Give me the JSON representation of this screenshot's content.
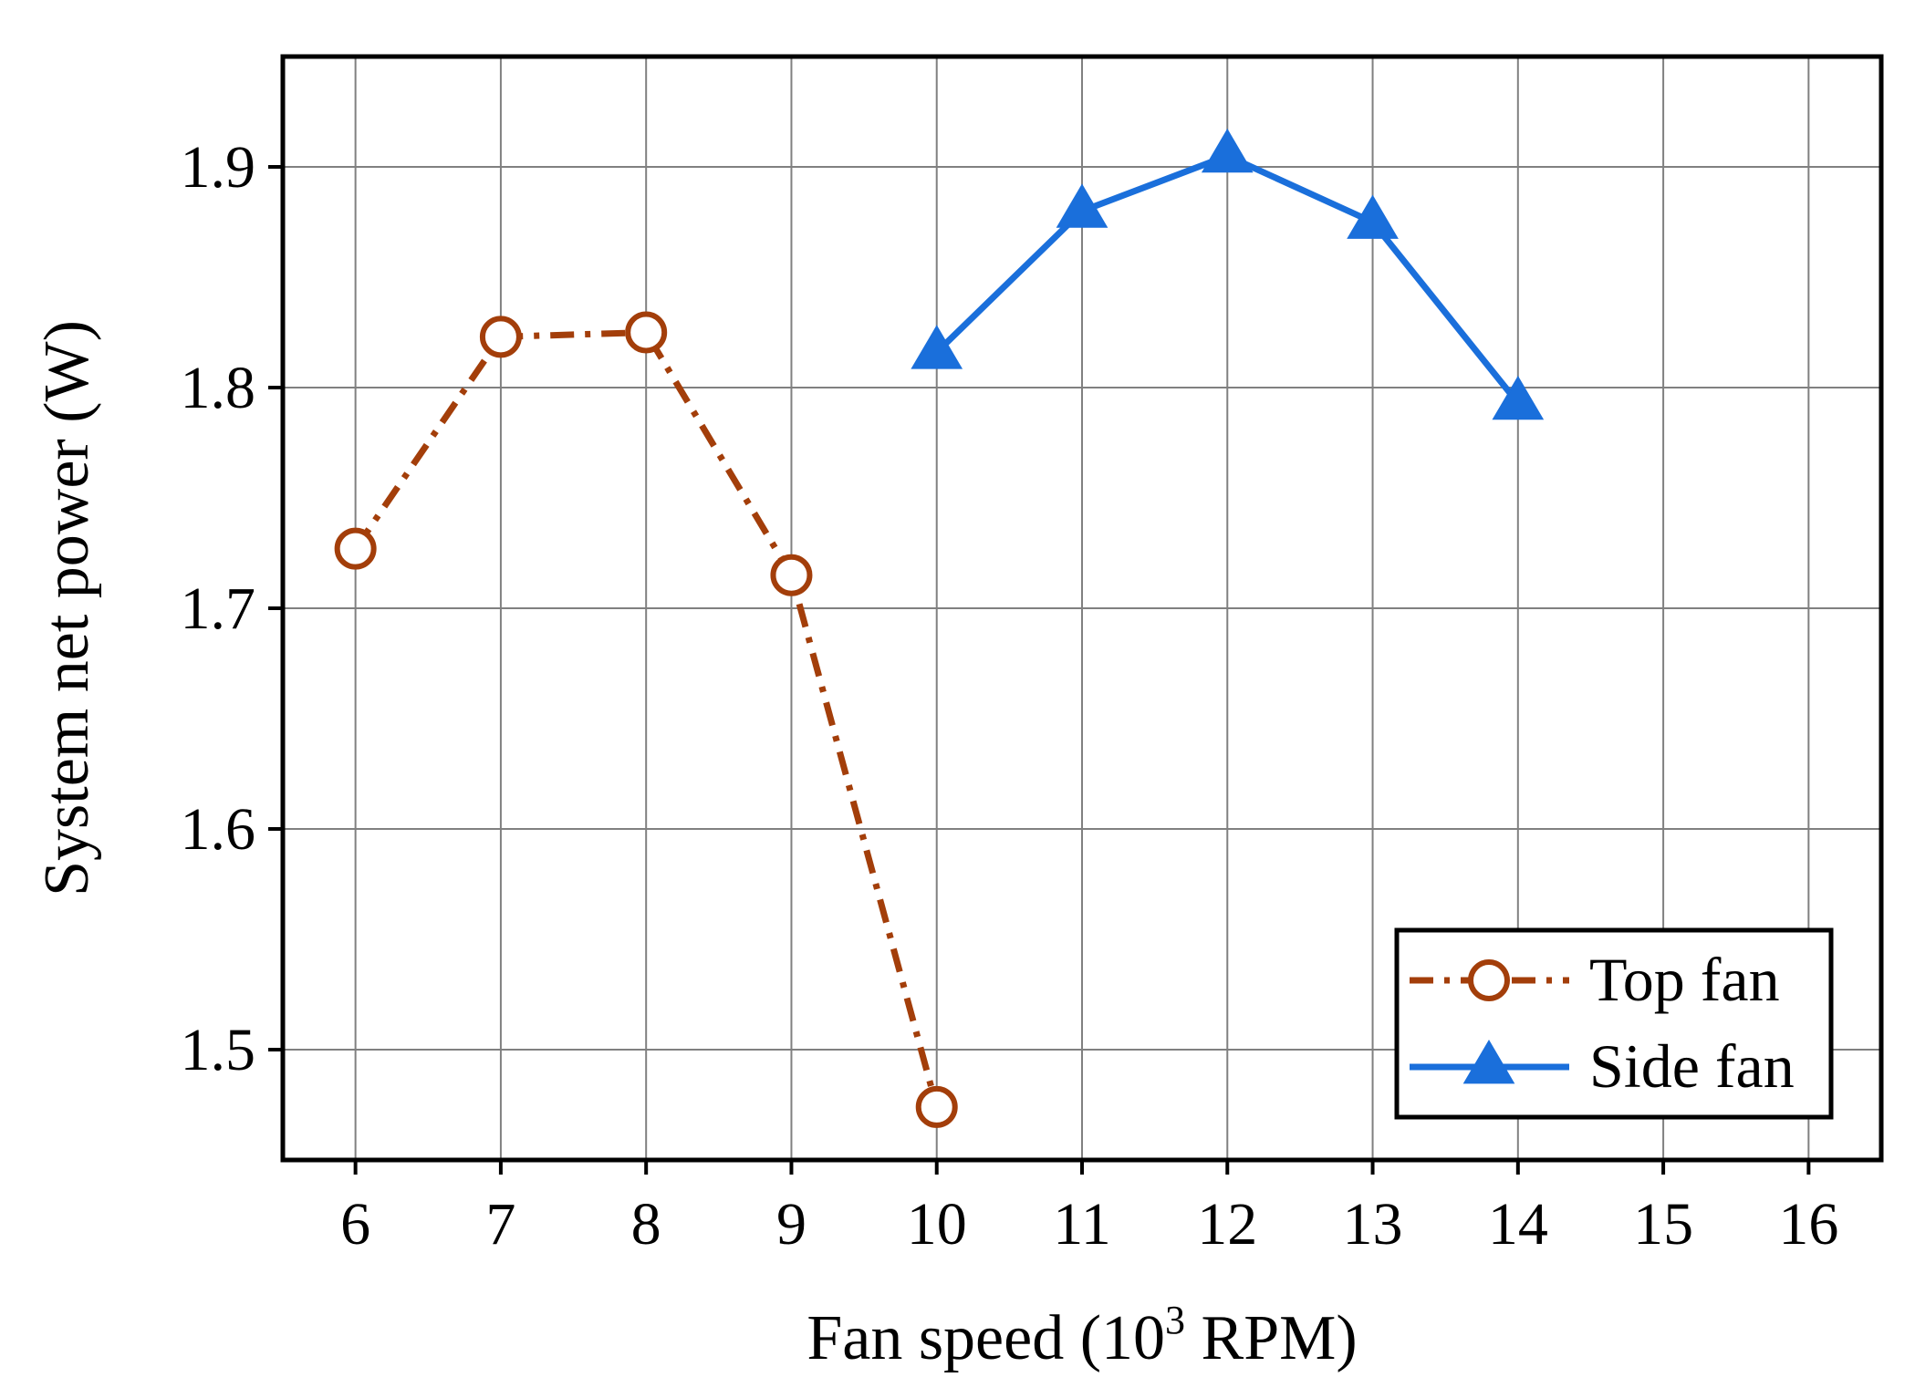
{
  "chart_data": {
    "type": "line",
    "title": "",
    "xlabel": "Fan speed (10",
    "xlabel_superscript": "3",
    "xlabel_suffix": " RPM)",
    "ylabel": "System net power (W)",
    "xlim": [
      5.5,
      16.5
    ],
    "ylim": [
      1.45,
      1.95
    ],
    "x_ticks": [
      6,
      7,
      8,
      9,
      10,
      11,
      12,
      13,
      14,
      15,
      16
    ],
    "x_tick_labels": [
      "6",
      "7",
      "8",
      "9",
      "10",
      "11",
      "12",
      "13",
      "14",
      "15",
      "16"
    ],
    "y_ticks": [
      1.5,
      1.6,
      1.7,
      1.8,
      1.9
    ],
    "y_tick_labels": [
      "1.5",
      "1.6",
      "1.7",
      "1.8",
      "1.9"
    ],
    "grid": true,
    "legend_position": "bottom-right",
    "series": [
      {
        "name": "Top fan",
        "color": "#A33E0A",
        "line_style": "dash-dot",
        "marker": "open-circle",
        "x": [
          6,
          7,
          8,
          9,
          10
        ],
        "y": [
          1.727,
          1.823,
          1.825,
          1.715,
          1.474
        ]
      },
      {
        "name": "Side fan",
        "color": "#1A6FDB",
        "line_style": "solid",
        "marker": "filled-triangle",
        "x": [
          10,
          11,
          12,
          13,
          14
        ],
        "y": [
          1.816,
          1.88,
          1.905,
          1.875,
          1.793
        ]
      }
    ]
  }
}
